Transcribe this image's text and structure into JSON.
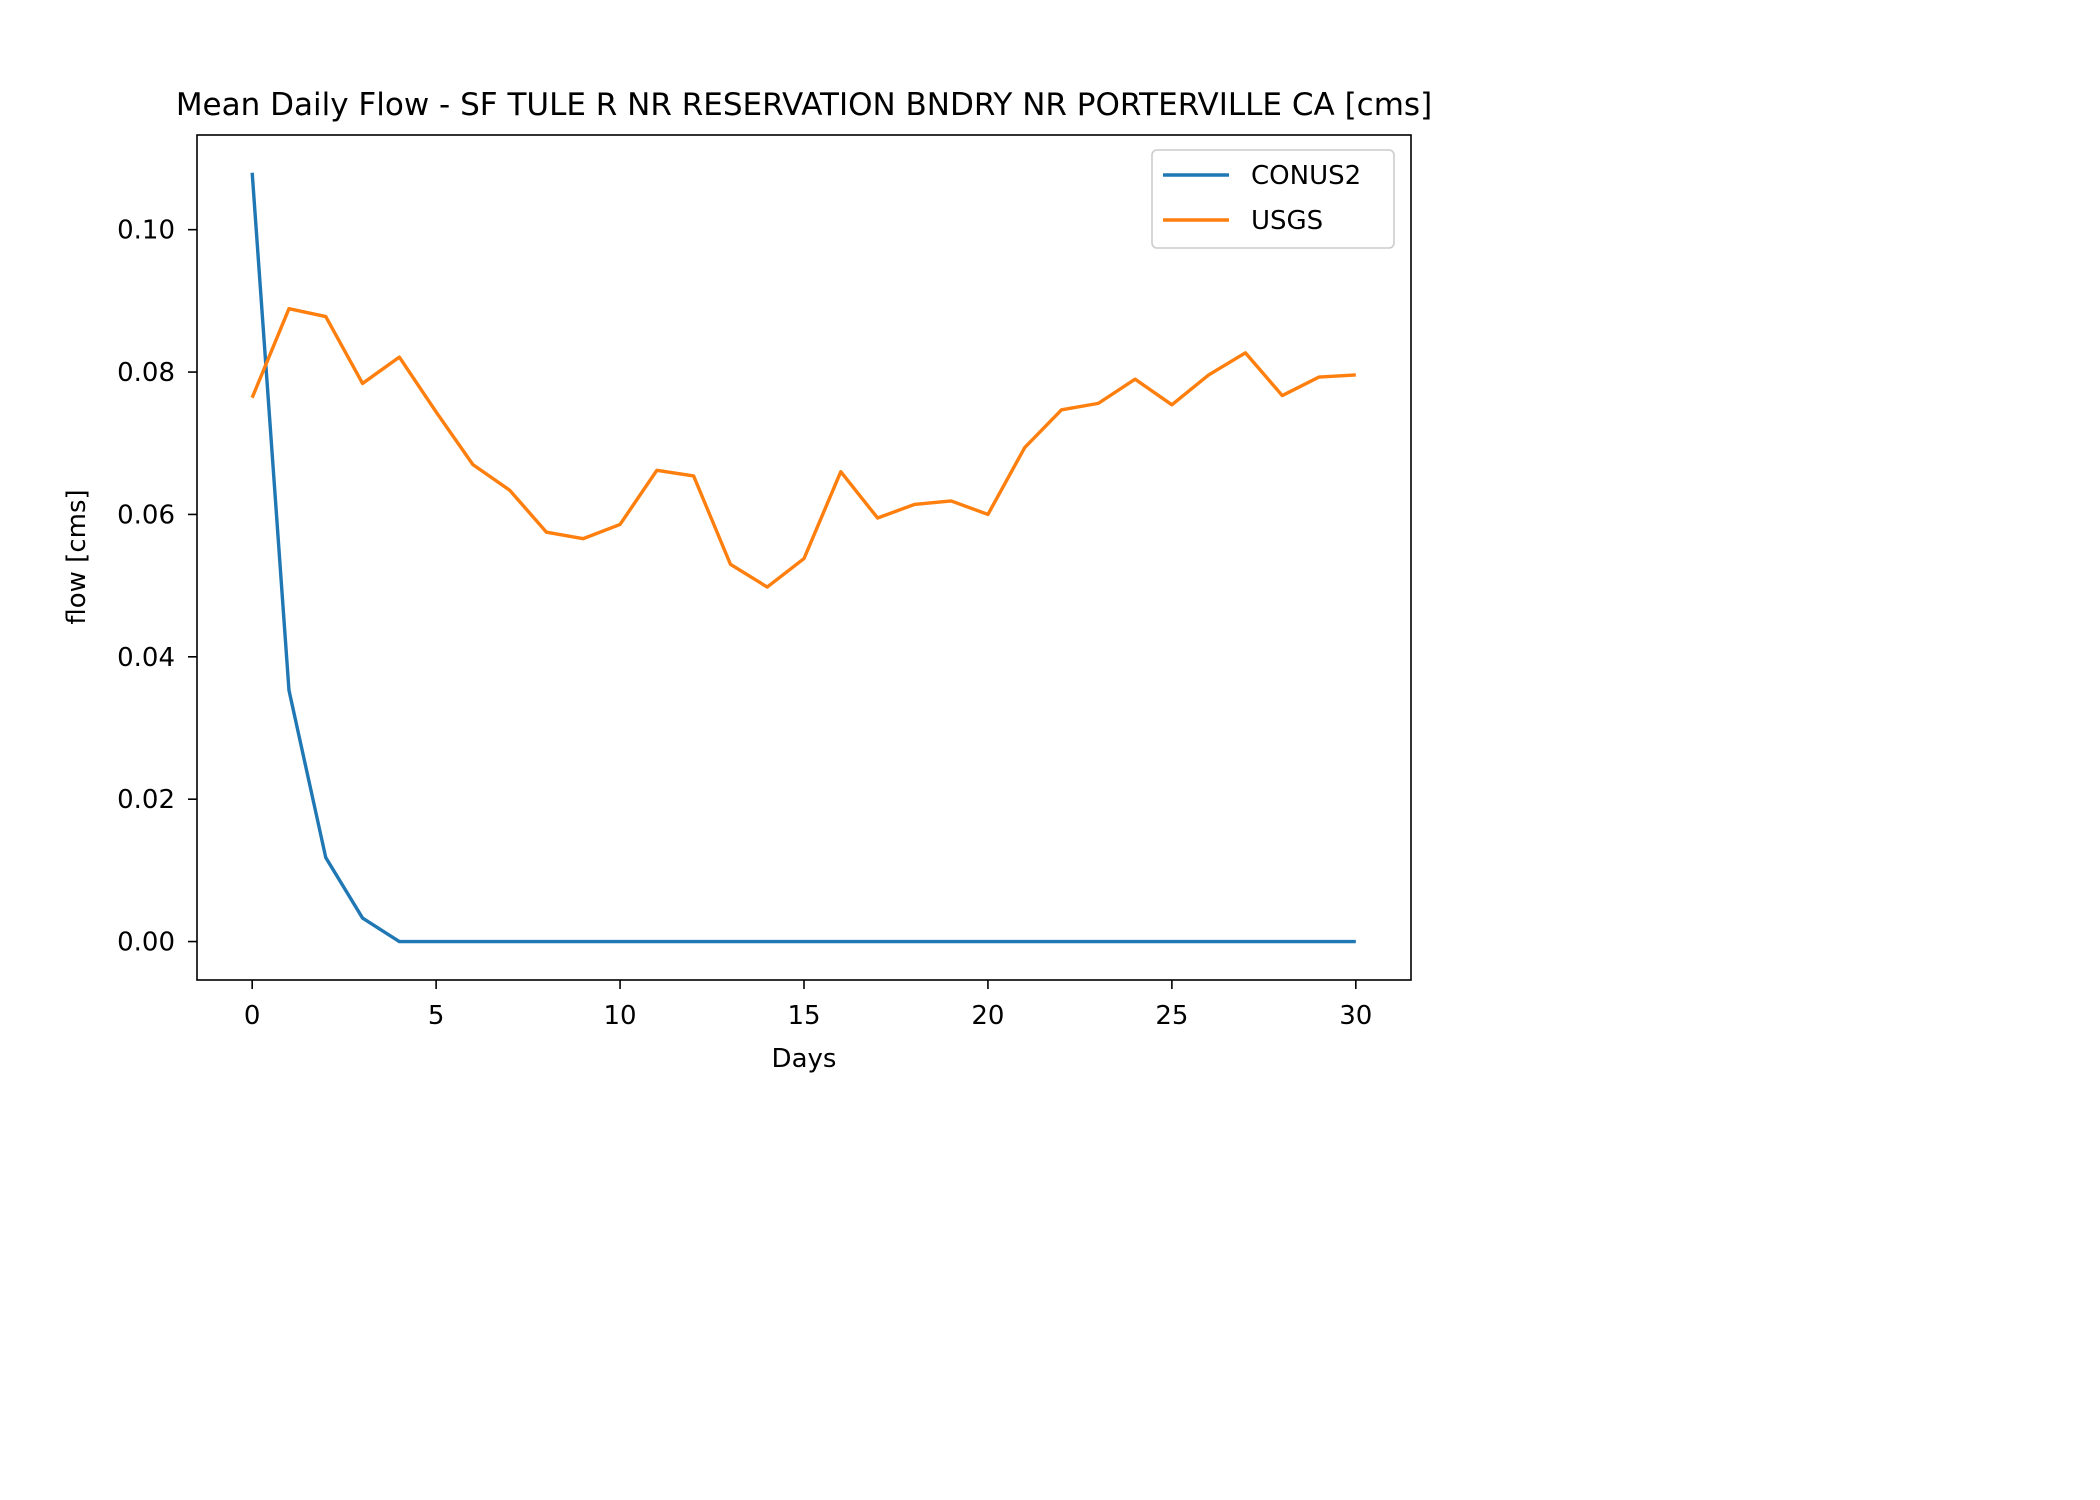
{
  "chart_data": {
    "type": "line",
    "title": "Mean Daily Flow - SF TULE R NR RESERVATION BNDRY NR PORTERVILLE CA [cms]",
    "xlabel": "Days",
    "ylabel": "flow [cms]",
    "xlim": [
      -1.5,
      31.5
    ],
    "ylim": [
      -0.0054,
      0.1133
    ],
    "xticks": [
      0,
      5,
      10,
      15,
      20,
      25,
      30
    ],
    "xtick_labels": [
      "0",
      "5",
      "10",
      "15",
      "20",
      "25",
      "30"
    ],
    "yticks": [
      0.0,
      0.02,
      0.04,
      0.06,
      0.08,
      0.1
    ],
    "ytick_labels": [
      "0.00",
      "0.02",
      "0.04",
      "0.06",
      "0.08",
      "0.10"
    ],
    "grid": false,
    "legend_position": "top-right",
    "x": [
      0,
      1,
      2,
      3,
      4,
      5,
      6,
      7,
      8,
      9,
      10,
      11,
      12,
      13,
      14,
      15,
      16,
      17,
      18,
      19,
      20,
      21,
      22,
      23,
      24,
      25,
      26,
      27,
      28,
      29,
      30
    ],
    "series": [
      {
        "name": "CONUS2",
        "color": "#1f77b4",
        "values": [
          0.108,
          0.0353,
          0.0118,
          0.0033,
          0.0,
          0.0,
          0.0,
          0.0,
          0.0,
          0.0,
          0.0,
          0.0,
          0.0,
          0.0,
          0.0,
          0.0,
          0.0,
          0.0,
          0.0,
          0.0,
          0.0,
          0.0,
          0.0,
          0.0,
          0.0,
          0.0,
          0.0,
          0.0,
          0.0,
          0.0,
          0.0
        ]
      },
      {
        "name": "USGS",
        "color": "#ff7f0e",
        "values": [
          0.0764,
          0.0889,
          0.0878,
          0.0784,
          0.0821,
          0.0744,
          0.067,
          0.0634,
          0.0575,
          0.0566,
          0.0586,
          0.0662,
          0.0654,
          0.053,
          0.0498,
          0.0538,
          0.066,
          0.0595,
          0.0614,
          0.0619,
          0.06,
          0.0694,
          0.0747,
          0.0756,
          0.079,
          0.0754,
          0.0796,
          0.0827,
          0.0767,
          0.0793,
          0.0796
        ]
      }
    ]
  }
}
